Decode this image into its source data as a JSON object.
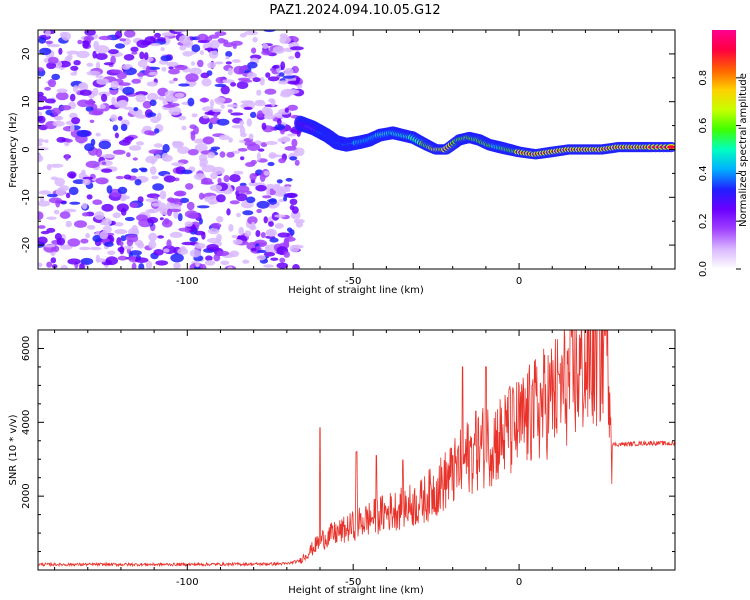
{
  "title": "PAZ1.2024.094.10.05.G12",
  "colors": {
    "snr_line": "#e8322a",
    "colormap": [
      "#ffffff",
      "#d9b8ff",
      "#a040ff",
      "#6a00ff",
      "#2020ff",
      "#00b0ff",
      "#00ffc0",
      "#40ff00",
      "#c8ff00",
      "#ffd000",
      "#ff6000",
      "#ff0040",
      "#ff0090"
    ]
  },
  "chart_data": [
    {
      "type": "heatmap",
      "xlabel": "Height of straight line (km)",
      "ylabel": "Frequency (Hz)",
      "xlim": [
        -145,
        47
      ],
      "ylim": [
        -25,
        25
      ],
      "xticks": [
        -100,
        -50,
        0
      ],
      "yticks": [
        -20,
        -10,
        0,
        10,
        20
      ],
      "colorbar": {
        "label": "Normalized spectral amplitude",
        "ticks": [
          "0.0",
          "0.2",
          "0.4",
          "0.6",
          "0.8"
        ],
        "range": [
          0,
          1
        ]
      },
      "noise_region_x": [
        -145,
        -66
      ],
      "ridge": {
        "x": [
          -66,
          -62,
          -58,
          -55,
          -52,
          -48,
          -45,
          -42,
          -38,
          -35,
          -32,
          -28,
          -25,
          -22,
          -18,
          -15,
          -12,
          -9,
          -6,
          -3,
          0,
          5,
          10,
          15,
          20,
          25,
          30,
          35,
          40,
          47
        ],
        "y": [
          5.5,
          4.5,
          3.0,
          1.5,
          1.0,
          1.5,
          2.0,
          3.0,
          3.5,
          3.0,
          2.5,
          1.0,
          0.0,
          0.0,
          2.0,
          2.5,
          2.0,
          1.0,
          0.5,
          0.0,
          -0.5,
          -1.0,
          -0.5,
          0.0,
          0.0,
          0.0,
          0.5,
          0.5,
          0.5,
          0.5
        ],
        "amplitude": [
          0.35,
          0.4,
          0.45,
          0.45,
          0.5,
          0.55,
          0.6,
          0.65,
          0.65,
          0.7,
          0.7,
          0.8,
          0.95,
          0.95,
          0.85,
          0.85,
          0.8,
          0.8,
          0.75,
          0.8,
          0.9,
          0.95,
          0.9,
          0.95,
          0.95,
          0.95,
          0.95,
          0.95,
          0.95,
          0.95
        ]
      }
    },
    {
      "type": "line",
      "xlabel": "Height of straight line (km)",
      "ylabel": "SNR (10 * v/v)",
      "xlim": [
        -145,
        47
      ],
      "ylim": [
        0,
        6500
      ],
      "xticks": [
        -100,
        -50,
        0
      ],
      "yticks": [
        2000,
        4000,
        6000
      ],
      "series": [
        {
          "x": [
            -145,
            -120,
            -100,
            -80,
            -70,
            -66,
            -62,
            -60,
            -58,
            -55,
            -52,
            -50,
            -45,
            -40,
            -35,
            -30,
            -25,
            -20,
            -15,
            -10,
            -5,
            0,
            5,
            10,
            15,
            20,
            25,
            26,
            27,
            28,
            30,
            35,
            40,
            47
          ],
          "y": [
            150,
            150,
            150,
            160,
            170,
            250,
            600,
            800,
            900,
            1000,
            1100,
            1200,
            1400,
            1550,
            1700,
            1800,
            2200,
            2600,
            3100,
            3400,
            3600,
            3900,
            4300,
            4700,
            5100,
            5500,
            5900,
            6100,
            5900,
            3400,
            3400,
            3420,
            3440,
            3420
          ],
          "spikes": [
            [
              -60,
              3850
            ],
            [
              -49,
              3200
            ],
            [
              -43,
              3100
            ],
            [
              -35,
              2980
            ],
            [
              -20,
              3100
            ],
            [
              -17,
              5500
            ],
            [
              -13,
              4300
            ],
            [
              -10,
              5500
            ],
            [
              -3,
              4900
            ],
            [
              4,
              5000
            ],
            [
              12,
              5300
            ],
            [
              26,
              6350
            ]
          ]
        }
      ]
    }
  ]
}
